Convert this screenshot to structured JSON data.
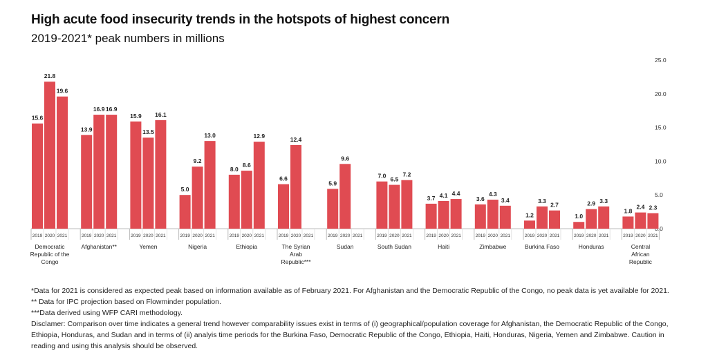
{
  "title": "High acute food insecurity trends in the hotspots of highest concern",
  "subtitle": "2019-2021* peak numbers in millions",
  "colors": {
    "bar": "#e04b52",
    "axis": "#bbbbbb",
    "text": "#222222"
  },
  "chart_data": {
    "type": "bar",
    "years": [
      "2019",
      "2020",
      "2021"
    ],
    "ylim": [
      0,
      25
    ],
    "yticks": [
      "0.0",
      "5.0",
      "10.0",
      "15.0",
      "20.0",
      "25.0"
    ],
    "grid": false,
    "groups": [
      {
        "name": "Democratic Republic of the Congo",
        "lines": [
          "Democratic",
          "Republic of the",
          "Congo"
        ],
        "values": [
          15.6,
          21.8,
          19.6
        ],
        "labels": [
          "15.6",
          "21.8",
          "19.6"
        ]
      },
      {
        "name": "Afghanistan**",
        "lines": [
          "Afghanistan**"
        ],
        "values": [
          13.9,
          16.9,
          16.9
        ],
        "labels": [
          "13.9",
          "16.9",
          "16.9"
        ]
      },
      {
        "name": "Yemen",
        "lines": [
          "Yemen"
        ],
        "values": [
          15.9,
          13.5,
          16.1
        ],
        "labels": [
          "15.9",
          "13.5",
          "16.1"
        ]
      },
      {
        "name": "Nigeria",
        "lines": [
          "Nigeria"
        ],
        "values": [
          5.0,
          9.2,
          13.0
        ],
        "labels": [
          "5.0",
          "9.2",
          "13.0"
        ]
      },
      {
        "name": "Ethiopia",
        "lines": [
          "Ethiopia"
        ],
        "values": [
          8.0,
          8.6,
          12.9
        ],
        "labels": [
          "8.0",
          "8.6",
          "12.9"
        ]
      },
      {
        "name": "The Syrian Arab Republic***",
        "lines": [
          "The Syrian",
          "Arab",
          "Republic***"
        ],
        "values": [
          6.6,
          12.4,
          null
        ],
        "labels": [
          "6.6",
          "12.4",
          ""
        ]
      },
      {
        "name": "Sudan",
        "lines": [
          "Sudan"
        ],
        "values": [
          5.9,
          9.6,
          null
        ],
        "labels": [
          "5.9",
          "9.6",
          ""
        ]
      },
      {
        "name": "South Sudan",
        "lines": [
          "South Sudan"
        ],
        "values": [
          7.0,
          6.5,
          7.2
        ],
        "labels": [
          "7.0",
          "6.5",
          "7.2"
        ]
      },
      {
        "name": "Haiti",
        "lines": [
          "Haiti"
        ],
        "values": [
          3.7,
          4.1,
          4.4
        ],
        "labels": [
          "3.7",
          "4.1",
          "4.4"
        ]
      },
      {
        "name": "Zimbabwe",
        "lines": [
          "Zimbabwe"
        ],
        "values": [
          3.6,
          4.3,
          3.4
        ],
        "labels": [
          "3.6",
          "4.3",
          "3.4"
        ]
      },
      {
        "name": "Burkina Faso",
        "lines": [
          "Burkina Faso"
        ],
        "values": [
          1.2,
          3.3,
          2.7
        ],
        "labels": [
          "1.2",
          "3.3",
          "2.7"
        ]
      },
      {
        "name": "Honduras",
        "lines": [
          "Honduras"
        ],
        "values": [
          1.0,
          2.9,
          3.3
        ],
        "labels": [
          "1.0",
          "2.9",
          "3.3"
        ]
      },
      {
        "name": "Central African Republic",
        "lines": [
          "Central",
          "African",
          "Republic"
        ],
        "values": [
          1.8,
          2.4,
          2.3
        ],
        "labels": [
          "1.8",
          "2.4",
          "2.3"
        ]
      }
    ]
  },
  "notes": [
    "*Data for 2021 is considered as expected peak based on information available as of February 2021. For Afghanistan and the Democratic Republic of the Congo, no peak data is yet available for 2021.",
    "** Data for IPC projection based on Flowminder population.",
    "***Data derived using WFP CARI methodology.",
    "Disclamer: Comparison over time indicates a general trend however comparability issues exist in terms of (i) geographical/population coverage for Afghanistan, the Democratic Republic of the Congo, Ethiopia, Honduras, and Sudan and in terms of  (ii) analyis time periods for the Burkina Faso, Democratic Republic of the Congo, Ethiopia, Haiti, Honduras, Nigeria, Yemen and Zimbabwe. Caution in reading and using this analysis should be observed."
  ]
}
